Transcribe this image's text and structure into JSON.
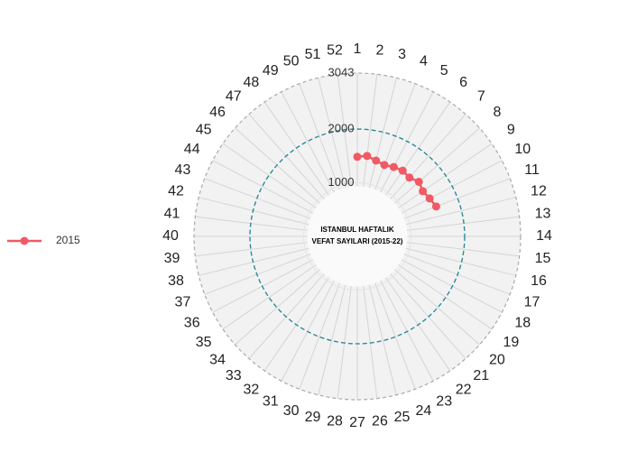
{
  "chart_data": {
    "type": "polar_line",
    "title": [
      "ISTANBUL HAFTALIK",
      "VEFAT SAYILARI (2015-22)"
    ],
    "categories": [
      "1",
      "2",
      "3",
      "4",
      "5",
      "6",
      "7",
      "8",
      "9",
      "10",
      "11",
      "12",
      "13",
      "14",
      "15",
      "16",
      "17",
      "18",
      "19",
      "20",
      "21",
      "22",
      "23",
      "24",
      "25",
      "26",
      "27",
      "28",
      "29",
      "30",
      "31",
      "32",
      "33",
      "34",
      "35",
      "36",
      "37",
      "38",
      "39",
      "40",
      "41",
      "42",
      "43",
      "44",
      "45",
      "46",
      "47",
      "48",
      "49",
      "50",
      "51",
      "52"
    ],
    "series": [
      {
        "name": "2015",
        "color": "#f05a64",
        "values": [
          1483,
          1510,
          1455,
          1423,
          1460,
          1488,
          1465,
          1533,
          1483,
          1522,
          1572,
          null,
          null,
          null,
          null,
          null,
          null,
          null,
          null,
          null,
          null,
          null,
          null,
          null,
          null,
          null,
          null,
          null,
          null,
          null,
          null,
          null,
          null,
          null,
          null,
          null,
          null,
          null,
          null,
          null,
          null,
          null,
          null,
          null,
          null,
          null,
          null,
          null,
          null,
          null,
          null,
          null
        ]
      }
    ],
    "ylim": [
      0,
      3043
    ],
    "yticks": [
      1000,
      2000,
      3043
    ],
    "grid": true,
    "legend": "left"
  }
}
